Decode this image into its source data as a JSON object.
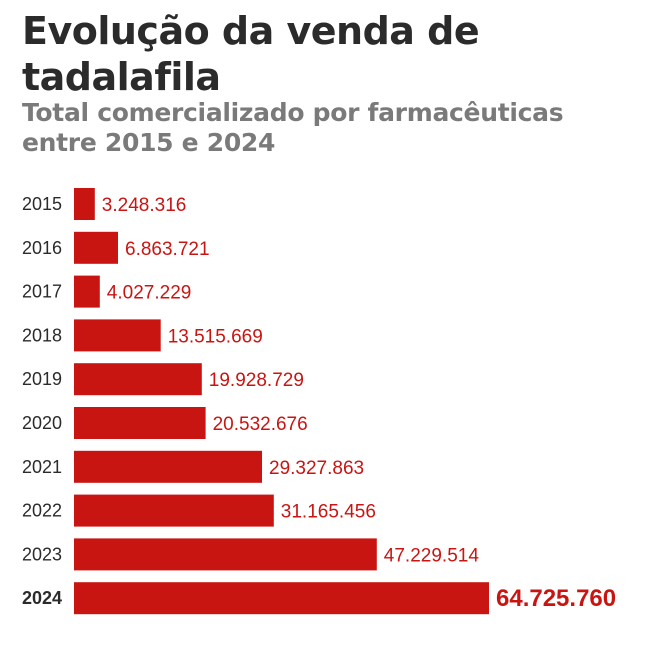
{
  "title": "Evolução da venda de tadalafila",
  "subtitle": "Total comercializado por farmacêuticas entre 2015 e 2024",
  "colors": {
    "bar": "#c81512",
    "value_label": "#c81512",
    "title": "#2b2b2b",
    "subtitle": "#7a7a7a",
    "year_label": "#2b2b2b"
  },
  "chart_data": {
    "type": "bar",
    "orientation": "horizontal",
    "title": "Evolução da venda de tadalafila",
    "subtitle": "Total comercializado por farmacêuticas entre 2015 e 2024",
    "xlabel": "",
    "ylabel": "",
    "xlim": [
      0,
      64725760
    ],
    "grid": false,
    "highlight_category": "2024",
    "categories": [
      "2015",
      "2016",
      "2017",
      "2018",
      "2019",
      "2020",
      "2021",
      "2022",
      "2023",
      "2024"
    ],
    "values": [
      3248316,
      6863721,
      4027229,
      13515669,
      19928729,
      20532676,
      29327863,
      31165456,
      47229514,
      64725760
    ],
    "value_labels": [
      "3.248.316",
      "6.863.721",
      "4.027.229",
      "13.515.669",
      "19.928.729",
      "20.532.676",
      "29.327.863",
      "31.165.456",
      "47.229.514",
      "64.725.760"
    ]
  }
}
